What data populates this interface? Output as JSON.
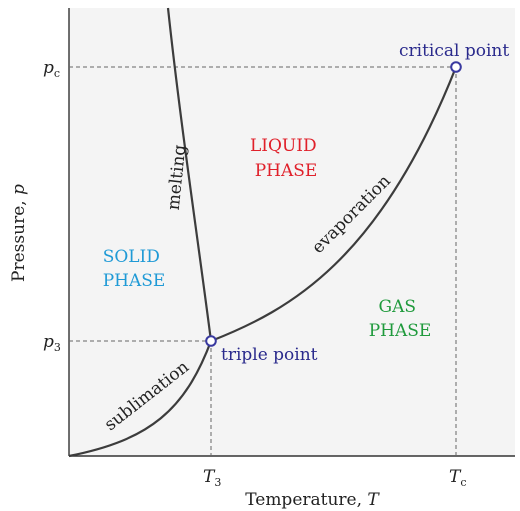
{
  "axes": {
    "ylabel_text": "Pressure, ",
    "ylabel_var": "p",
    "xlabel_text": "Temperature, ",
    "xlabel_var": "T",
    "ticks": {
      "pc_base": "p",
      "pc_sub": "c",
      "p3_base": "p",
      "p3_sub": "3",
      "t3_base": "T",
      "t3_sub": "3",
      "tc_base": "T",
      "tc_sub": "c"
    }
  },
  "regions": {
    "solid": [
      "SOLID",
      "PHASE"
    ],
    "liquid": [
      "LIQUID",
      "PHASE"
    ],
    "gas": [
      "GAS",
      "PHASE"
    ]
  },
  "curves": {
    "melting": "melting",
    "evaporation": "evaporation",
    "sublimation": "sublimation"
  },
  "points": {
    "triple": "triple point",
    "critical": "critical point"
  },
  "colors": {
    "solid": "#1f9ad6",
    "liquid": "#e0202a",
    "gas": "#1f9a3c",
    "point_label": "#2a2a8c",
    "point_marker": "#3a3aa0",
    "curve": "#3c3c3c",
    "plot_bg": "#f4f4f4"
  }
}
